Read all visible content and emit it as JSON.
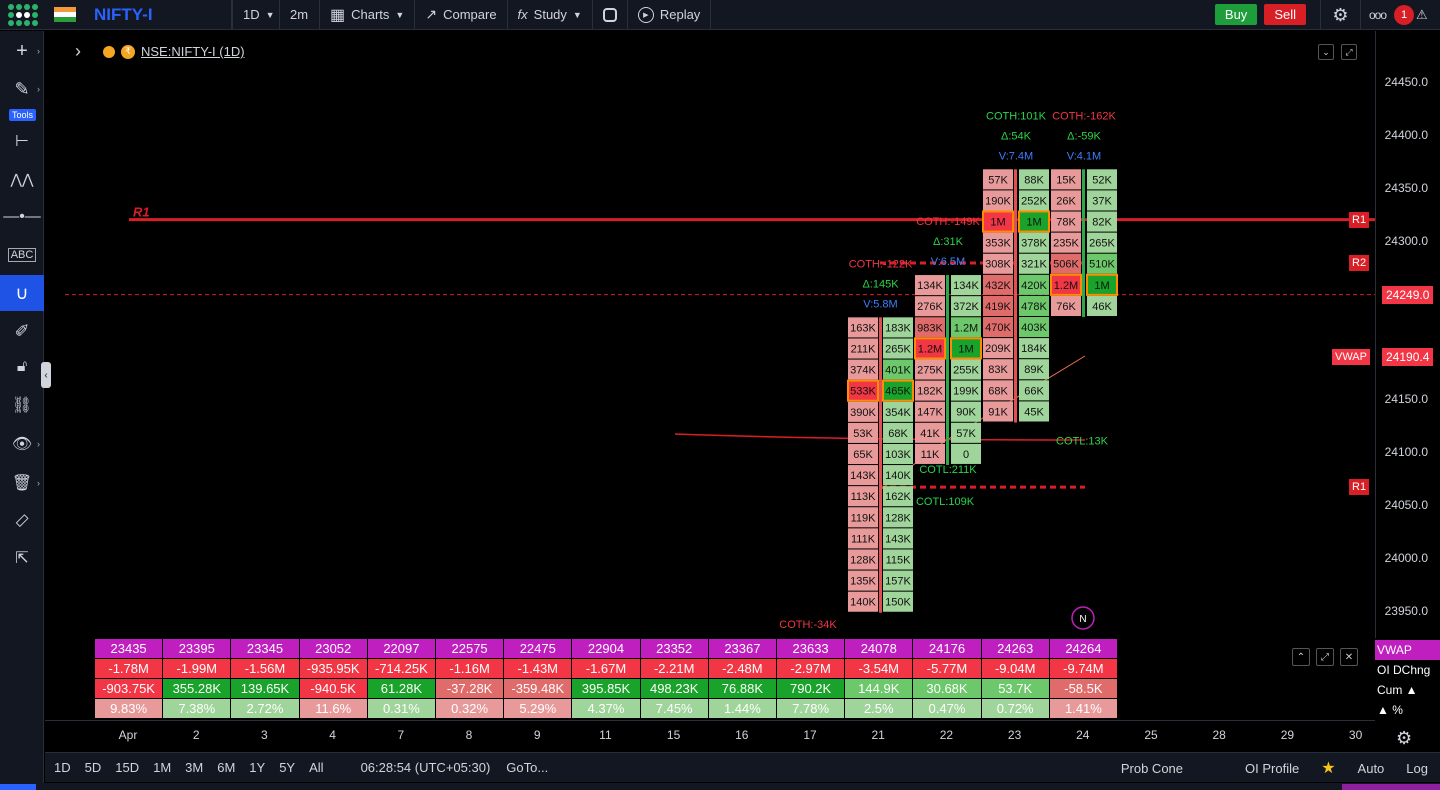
{
  "topbar": {
    "symbol": "NIFTY-I",
    "interval": "1D",
    "sub_interval": "2m",
    "charts_label": "Charts",
    "compare_label": "Compare",
    "study_label": "Study",
    "replay_label": "Replay",
    "buy_label": "Buy",
    "sell_label": "Sell",
    "more_label": "ooo",
    "notification_count": "1"
  },
  "left_tools": {
    "tools_label": "Tools"
  },
  "header": {
    "symbol_full": "NSE:NIFTY-I (1D)"
  },
  "price_axis": {
    "ticks": [
      "24450.0",
      "24400.0",
      "24350.0",
      "24300.0",
      "24150.0",
      "24100.0",
      "24050.0",
      "24000.0",
      "23950.0"
    ],
    "ticks_values": [
      24450,
      24400,
      24350,
      24300,
      24150,
      24100,
      24050,
      24000,
      23950
    ],
    "labels": [
      {
        "text": "R1",
        "value": 24320,
        "color": "#d81f26",
        "pos": "chart"
      },
      {
        "text": "R2",
        "value": 24279,
        "color": "#d81f26",
        "pos": "chart"
      },
      {
        "text": "R1",
        "value": 24067,
        "color": "#d81f26",
        "pos": "chart"
      },
      {
        "text": "VWAP",
        "value": 24190.4,
        "color": "#f23645",
        "pos": "chart-left"
      }
    ],
    "last_price": "24249.0",
    "vwap_price": "24190.4"
  },
  "chart_data": {
    "type": "footprint",
    "price_range": [
      23930,
      24470
    ],
    "levels": [
      {
        "name": "R1",
        "value": 24320,
        "color": "#d81f26"
      },
      {
        "name": "R2",
        "value": 24279,
        "color": "#d81f26"
      },
      {
        "name": "R1",
        "value": 24067,
        "color": "#d81f26"
      }
    ],
    "last_price": 24249.0,
    "vwap": 24190.4,
    "candles": [
      {
        "day": "21",
        "top_price": 24220,
        "coth": "COTH:-122K",
        "delta": "Δ:145K",
        "volume": "V:5.8M",
        "cotl": "COTL:109K",
        "bid": [
          "163K",
          "211K",
          "374K",
          "533K",
          "390K",
          "53K",
          "65K",
          "143K",
          "113K",
          "119K",
          "111K",
          "128K",
          "135K",
          "140K"
        ],
        "ask": [
          "183K",
          "265K",
          "401K",
          "465K",
          "354K",
          "68K",
          "103K",
          "140K",
          "162K",
          "128K",
          "143K",
          "115K",
          "157K",
          "150K"
        ],
        "highlight_row": 3
      },
      {
        "day": "22",
        "top_price": 24260,
        "coth": "COTH:-149K",
        "delta": "Δ:31K",
        "volume": "V:6.5M",
        "cotl": "COTL:211K",
        "bid": [
          "134K",
          "276K",
          "983K",
          "1.2M",
          "275K",
          "182K",
          "147K",
          "41K",
          "11K"
        ],
        "ask": [
          "134K",
          "372K",
          "1.2M",
          "1M",
          "255K",
          "199K",
          "90K",
          "57K",
          "0"
        ],
        "highlight_row": 3
      },
      {
        "day": "23",
        "top_price": 24360,
        "coth": "COTH:101K",
        "delta": "Δ:54K",
        "volume": "V:7.4M",
        "cotl": "COTL:13K",
        "bid": [
          "57K",
          "190K",
          "1M",
          "353K",
          "308K",
          "432K",
          "419K",
          "470K",
          "209K",
          "83K",
          "68K",
          "91K"
        ],
        "ask": [
          "88K",
          "252K",
          "1M",
          "378K",
          "321K",
          "420K",
          "478K",
          "403K",
          "184K",
          "89K",
          "66K",
          "45K"
        ],
        "highlight_row": 2
      },
      {
        "day": "24",
        "top_price": 24360,
        "coth": "COTH:-162K",
        "delta": "Δ:-59K",
        "volume": "V:4.1M",
        "cotl": "",
        "bid": [
          "15K",
          "26K",
          "78K",
          "235K",
          "506K",
          "1.2M",
          "76K"
        ],
        "ask": [
          "52K",
          "37K",
          "82K",
          "265K",
          "510K",
          "1M",
          "46K"
        ],
        "highlight_row": 5
      }
    ],
    "extra_label": "COTH:-34K"
  },
  "table": {
    "rows": [
      [
        "23435",
        "23395",
        "23345",
        "23052",
        "22097",
        "22575",
        "22475",
        "22904",
        "23352",
        "23367",
        "23633",
        "24078",
        "24176",
        "24263",
        "24264"
      ],
      [
        "-1.78M",
        "-1.99M",
        "-1.56M",
        "-935.95K",
        "-714.25K",
        "-1.16M",
        "-1.43M",
        "-1.67M",
        "-2.21M",
        "-2.48M",
        "-2.97M",
        "-3.54M",
        "-5.77M",
        "-9.04M",
        "-9.74M"
      ],
      [
        "-903.75K",
        "355.28K",
        "139.65K",
        "-940.5K",
        "61.28K",
        "-37.28K",
        "-359.48K",
        "395.85K",
        "498.23K",
        "76.88K",
        "790.2K",
        "144.9K",
        "30.68K",
        "53.7K",
        "-58.5K"
      ],
      [
        "9.83%",
        "7.38%",
        "2.72%",
        "11.6%",
        "0.31%",
        "0.32%",
        "5.29%",
        "4.37%",
        "7.45%",
        "1.44%",
        "7.78%",
        "2.5%",
        "0.47%",
        "0.72%",
        "1.41%"
      ]
    ],
    "row_labels": [
      "VWAP",
      "OI DChng",
      "Cum ▲",
      "▲ %"
    ]
  },
  "time_axis": {
    "ticks": [
      "Apr",
      "2",
      "3",
      "4",
      "7",
      "8",
      "9",
      "11",
      "15",
      "16",
      "17",
      "21",
      "22",
      "23",
      "24",
      "25",
      "28",
      "29",
      "30"
    ]
  },
  "bottombar": {
    "ranges": [
      "1D",
      "5D",
      "15D",
      "1M",
      "3M",
      "6M",
      "1Y",
      "5Y",
      "All"
    ],
    "clock": "06:28:54 (UTC+05:30)",
    "goto": "GoTo...",
    "prob_cone": "Prob Cone",
    "oi_profile": "OI Profile",
    "auto": "Auto",
    "log": "Log"
  },
  "colors": {
    "bid_strong": "#f23645",
    "bid_mid": "#e06b6b",
    "bid_light": "#e89a9a",
    "ask_strong": "#1aa32a",
    "ask_mid": "#6cc86a",
    "ask_light": "#9fd49a",
    "magenta": "#c01fbf"
  }
}
